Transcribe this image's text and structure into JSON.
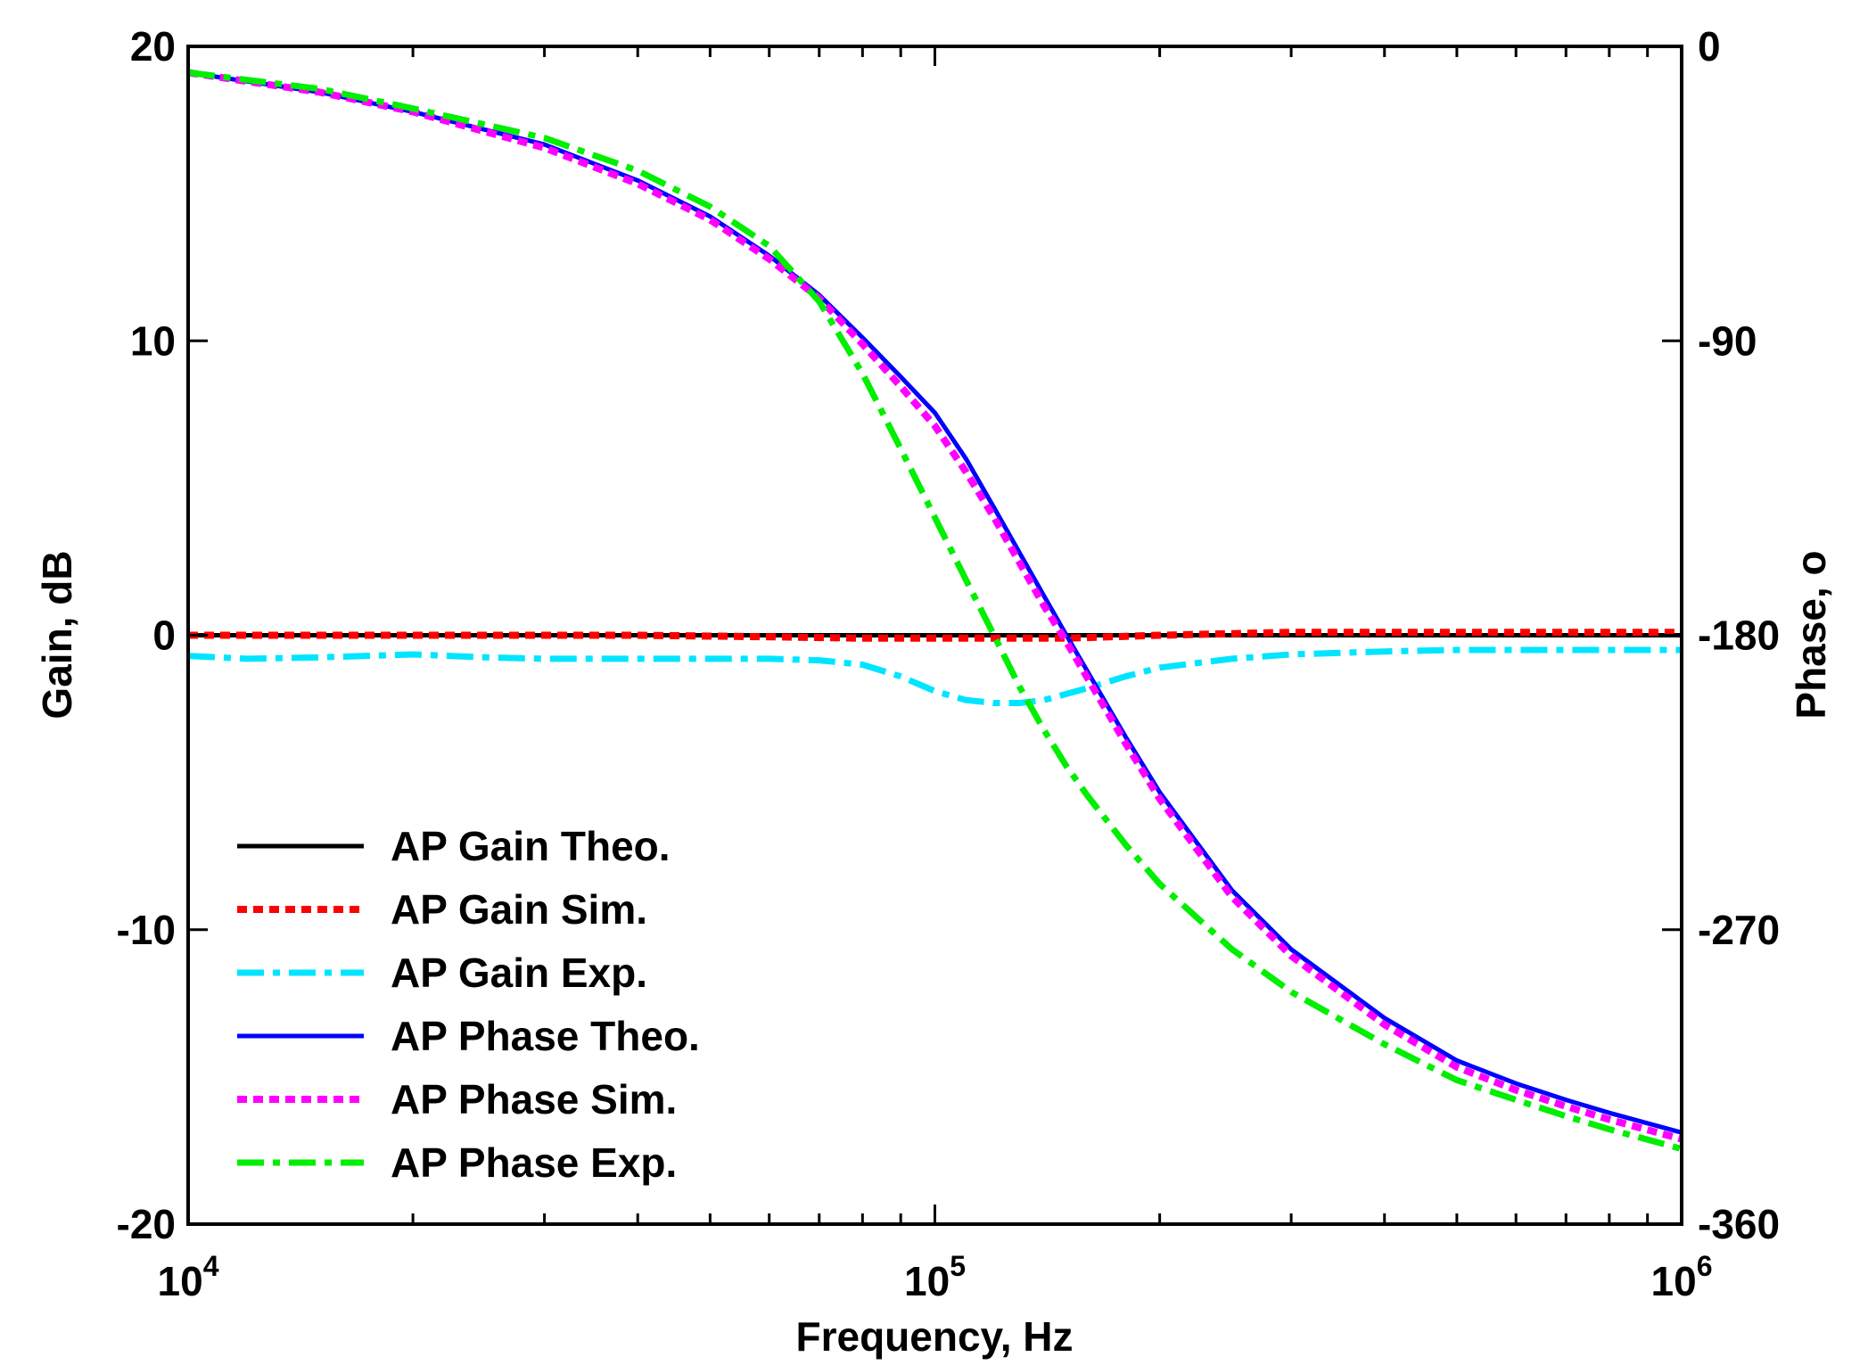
{
  "chart_data": {
    "type": "line",
    "title": "",
    "xlabel": "Frequency, Hz",
    "ylabel_left": "Gain, dB",
    "ylabel_right": "Phase, o",
    "xscale": "log",
    "xlim": [
      10000,
      1000000
    ],
    "ylim_left": [
      -20,
      20
    ],
    "ylim_right": [
      -360,
      0
    ],
    "grid": false,
    "legend_position": "bottom-left",
    "x_ticks": [
      {
        "value": 10000,
        "base": "10",
        "exp": "4"
      },
      {
        "value": 100000,
        "base": "10",
        "exp": "5"
      },
      {
        "value": 1000000,
        "base": "10",
        "exp": "6"
      }
    ],
    "y_ticks_left": [
      {
        "value": 20,
        "label": "20"
      },
      {
        "value": 10,
        "label": "10"
      },
      {
        "value": 0,
        "label": "0"
      },
      {
        "value": -10,
        "label": "-10"
      },
      {
        "value": -20,
        "label": "-20"
      }
    ],
    "y_ticks_right": [
      {
        "value": 0,
        "label": "0"
      },
      {
        "value": -90,
        "label": "-90"
      },
      {
        "value": -180,
        "label": "-180"
      },
      {
        "value": -270,
        "label": "-270"
      },
      {
        "value": -360,
        "label": "-360"
      }
    ],
    "series": [
      {
        "name": "AP Gain Theo.",
        "axis": "left",
        "color": "#000000",
        "style": "solid",
        "x": [
          10000,
          20000,
          50000,
          100000,
          200000,
          500000,
          1000000
        ],
        "y": [
          0,
          0,
          0,
          0,
          0,
          0,
          0
        ]
      },
      {
        "name": "AP Gain Sim.",
        "axis": "left",
        "color": "#ff0000",
        "style": "dotted",
        "x": [
          10000,
          20000,
          40000,
          60000,
          80000,
          100000,
          150000,
          200000,
          300000,
          500000,
          1000000
        ],
        "y": [
          0,
          0,
          0,
          -0.05,
          -0.1,
          -0.1,
          -0.1,
          0,
          0.1,
          0.1,
          0.1
        ]
      },
      {
        "name": "AP Gain Exp.",
        "axis": "left",
        "color": "#00e5ff",
        "style": "dashdot",
        "x": [
          10000,
          12000,
          15000,
          20000,
          25000,
          30000,
          40000,
          60000,
          70000,
          80000,
          90000,
          100000,
          110000,
          120000,
          130000,
          140000,
          160000,
          180000,
          200000,
          250000,
          300000,
          400000,
          500000,
          700000,
          1000000
        ],
        "y": [
          -0.7,
          -0.8,
          -0.75,
          -0.65,
          -0.75,
          -0.8,
          -0.8,
          -0.8,
          -0.85,
          -1.0,
          -1.4,
          -1.9,
          -2.2,
          -2.3,
          -2.3,
          -2.2,
          -1.8,
          -1.4,
          -1.1,
          -0.8,
          -0.65,
          -0.55,
          -0.5,
          -0.5,
          -0.5
        ]
      },
      {
        "name": "AP Phase Theo.",
        "axis": "right",
        "color": "#0000ff",
        "style": "solid",
        "x": [
          10000,
          15000,
          20000,
          30000,
          40000,
          50000,
          60000,
          70000,
          80000,
          90000,
          100000,
          110000,
          120000,
          130000,
          140000,
          150000,
          160000,
          180000,
          200000,
          250000,
          300000,
          400000,
          500000,
          600000,
          700000,
          800000,
          1000000
        ],
        "y": [
          -8,
          -14,
          -20,
          -30,
          -41,
          -52,
          -64,
          -76,
          -89,
          -101,
          -112,
          -126,
          -141,
          -155,
          -168,
          -180,
          -191,
          -211,
          -228,
          -258,
          -276,
          -297,
          -310,
          -317,
          -322,
          -326,
          -332
        ]
      },
      {
        "name": "AP Phase Sim.",
        "axis": "right",
        "color": "#ff00ff",
        "style": "dotted",
        "x": [
          10000,
          15000,
          20000,
          30000,
          40000,
          50000,
          60000,
          70000,
          80000,
          90000,
          100000,
          110000,
          120000,
          130000,
          140000,
          150000,
          160000,
          180000,
          200000,
          250000,
          300000,
          400000,
          500000,
          600000,
          700000,
          800000,
          1000000
        ],
        "y": [
          -8,
          -14,
          -20,
          -31,
          -42,
          -53,
          -65,
          -77,
          -91,
          -104,
          -116,
          -130,
          -144,
          -158,
          -171,
          -182,
          -193,
          -213,
          -230,
          -260,
          -278,
          -299,
          -312,
          -319,
          -324,
          -328,
          -334
        ]
      },
      {
        "name": "AP Phase Exp.",
        "axis": "right",
        "color": "#00ee00",
        "style": "dashdot",
        "x": [
          10000,
          15000,
          20000,
          30000,
          40000,
          50000,
          60000,
          70000,
          80000,
          90000,
          100000,
          110000,
          120000,
          130000,
          140000,
          150000,
          160000,
          180000,
          200000,
          250000,
          300000,
          400000,
          500000,
          600000,
          700000,
          800000,
          1000000
        ],
        "y": [
          -8,
          -13,
          -19,
          -28,
          -38,
          -49,
          -61,
          -78,
          -100,
          -123,
          -144,
          -163,
          -180,
          -196,
          -209,
          -220,
          -229,
          -244,
          -256,
          -276,
          -289,
          -305,
          -316,
          -322,
          -327,
          -331,
          -337
        ]
      }
    ]
  }
}
